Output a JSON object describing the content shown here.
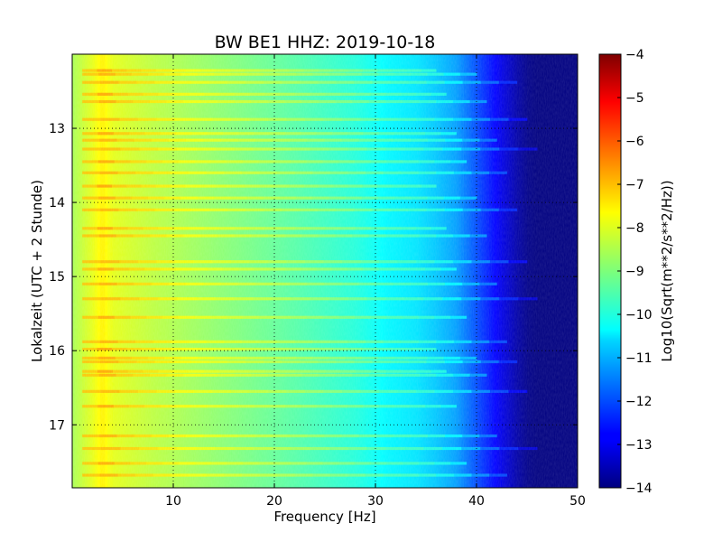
{
  "chart_data": {
    "type": "heatmap",
    "title": "BW BE1 HHZ: 2019-10-18",
    "xlabel": "Frequency [Hz]",
    "ylabel": "Lokalzeit (UTC + 2 Stunde)",
    "colorbar_label": "Log10(Sqrt(m**2/s**2/Hz))",
    "xlim": [
      0,
      50
    ],
    "ylim": [
      12.0,
      17.85
    ],
    "y_inverted": true,
    "x_ticks": [
      10,
      20,
      30,
      40,
      50
    ],
    "x_tick_labels": [
      "10",
      "20",
      "30",
      "40",
      "50"
    ],
    "y_ticks": [
      13,
      14,
      15,
      16,
      17
    ],
    "y_tick_labels": [
      "13",
      "14",
      "15",
      "16",
      "17"
    ],
    "colorbar_range": [
      -14,
      -4
    ],
    "colorbar_ticks": [
      -4,
      -5,
      -6,
      -7,
      -8,
      -9,
      -10,
      -11,
      -12,
      -13,
      -14
    ],
    "colorbar_tick_labels": [
      "−4",
      "−5",
      "−6",
      "−7",
      "−8",
      "−9",
      "−10",
      "−11",
      "−12",
      "−13",
      "−14"
    ],
    "colormap": "jet",
    "grid": true,
    "grid_style": "dotted",
    "level_profile": {
      "frequency_hz": [
        0,
        2,
        3,
        4,
        8,
        15,
        22,
        28,
        31,
        34,
        36,
        38,
        39,
        40,
        41,
        42,
        43,
        44,
        45,
        46,
        50
      ],
      "log10_amplitude": [
        -8.6,
        -8.0,
        -7.6,
        -8.0,
        -8.4,
        -8.9,
        -9.4,
        -9.9,
        -10.3,
        -10.5,
        -10.8,
        -11.2,
        -11.6,
        -12.0,
        -12.4,
        -12.8,
        -13.2,
        -13.6,
        -13.9,
        -14.0,
        -14.0
      ]
    },
    "bright_bands_hour": [
      12.22,
      12.27,
      12.38,
      12.54,
      12.64,
      12.88,
      13.07,
      13.16,
      13.28,
      13.45,
      13.6,
      13.78,
      13.94,
      14.1,
      14.35,
      14.45,
      14.8,
      14.9,
      15.1,
      15.3,
      15.55,
      15.88,
      15.98,
      16.1,
      16.15,
      16.28,
      16.33,
      16.55,
      16.75,
      17.15,
      17.32,
      17.52,
      17.68
    ]
  }
}
